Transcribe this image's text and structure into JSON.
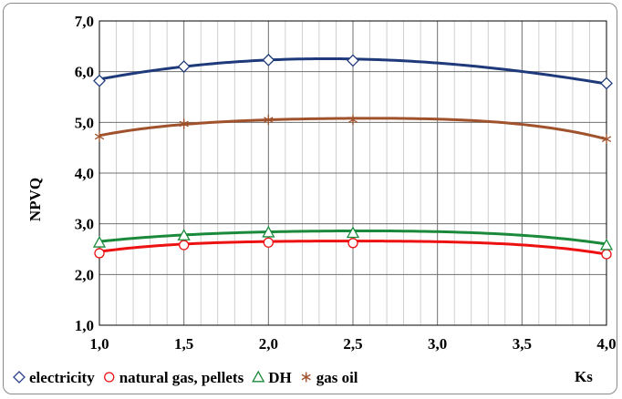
{
  "chart_data": {
    "type": "line",
    "title": "",
    "xlabel": "Ks",
    "ylabel": "NPVQ",
    "xlim": [
      1.0,
      4.0
    ],
    "ylim": [
      1.0,
      7.0
    ],
    "x_ticks": [
      "1,0",
      "1,5",
      "2,0",
      "2,5",
      "3,0",
      "3,5",
      "4,0"
    ],
    "y_ticks": [
      "1,0",
      "2,0",
      "3,0",
      "4,0",
      "5,0",
      "6,0",
      "7,0"
    ],
    "x_tick_values": [
      1.0,
      1.5,
      2.0,
      2.5,
      3.0,
      3.5,
      4.0
    ],
    "y_tick_values": [
      1.0,
      2.0,
      3.0,
      4.0,
      5.0,
      6.0,
      7.0
    ],
    "grid": true,
    "legend_position": "bottom",
    "x": [
      1.0,
      1.5,
      2.0,
      2.5,
      4.0
    ],
    "series": [
      {
        "name": "electricity",
        "values": [
          5.82,
          6.1,
          6.23,
          6.22,
          5.77
        ],
        "color": "#1f3a7a",
        "marker": "diamond",
        "fit": [
          5.85,
          6.1,
          6.23,
          6.25,
          5.76
        ]
      },
      {
        "name": "natural gas, pellets",
        "values": [
          2.42,
          2.58,
          2.63,
          2.62,
          2.4
        ],
        "color": "#ee1111",
        "marker": "circle",
        "fit": [
          2.45,
          2.6,
          2.65,
          2.66,
          2.4
        ]
      },
      {
        "name": "DH",
        "values": [
          2.63,
          2.77,
          2.83,
          2.82,
          2.58
        ],
        "color": "#1a8a3a",
        "marker": "triangle",
        "fit": [
          2.65,
          2.78,
          2.84,
          2.86,
          2.6
        ]
      },
      {
        "name": "gas oil",
        "values": [
          4.72,
          4.97,
          5.05,
          5.05,
          4.67
        ],
        "color": "#a0522d",
        "marker": "star",
        "fit": [
          4.74,
          4.96,
          5.05,
          5.08,
          4.67
        ]
      }
    ],
    "legend_marker_color": "#777777"
  }
}
